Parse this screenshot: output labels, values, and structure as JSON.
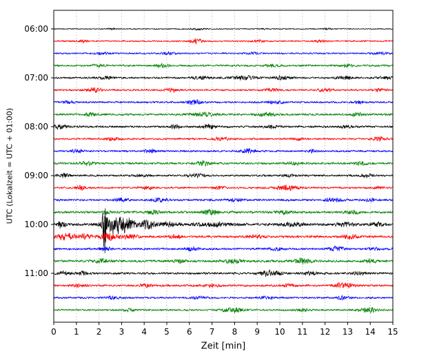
{
  "chart_data": {
    "type": "line",
    "subtype": "seismogram-dayplot",
    "title": "",
    "xlabel": "Zeit  [min]",
    "ylabel": "UTC (Lokalzeit = UTC + 01:00)",
    "xlim": [
      0,
      15
    ],
    "x_ticks": [
      0,
      1,
      2,
      3,
      4,
      5,
      6,
      7,
      8,
      9,
      10,
      11,
      12,
      13,
      14,
      15
    ],
    "y_tick_labels": [
      "06:00",
      "07:00",
      "08:00",
      "09:00",
      "10:00",
      "11:00"
    ],
    "minutes_per_line": 15,
    "grid": {
      "vertical_dotted": true,
      "color": "#999999"
    },
    "color_cycle": [
      "#000000",
      "#ff0000",
      "#0000ff",
      "#008000"
    ],
    "main_event": {
      "trace": "10:00",
      "x_min": 2.25,
      "relative_amplitude": "large spike with coda"
    },
    "traces": [
      {
        "time": "06:00",
        "color": "#000000",
        "base_amp": 0.9,
        "bursts": [
          {
            "x": 2.6,
            "amp": 1.2,
            "w": 0.2
          },
          {
            "x": 6.4,
            "amp": 1.5,
            "w": 0.25
          },
          {
            "x": 9.3,
            "amp": 1.0,
            "w": 0.2
          },
          {
            "x": 12.1,
            "amp": 1.2,
            "w": 0.2
          }
        ]
      },
      {
        "time": "06:15",
        "color": "#ff0000",
        "base_amp": 1.4,
        "bursts": [
          {
            "x": 1.3,
            "amp": 2.0,
            "w": 0.2
          },
          {
            "x": 6.3,
            "amp": 3.5,
            "w": 0.3
          },
          {
            "x": 9.0,
            "amp": 1.5,
            "w": 0.3
          },
          {
            "x": 11.8,
            "amp": 2.0,
            "w": 0.25
          }
        ]
      },
      {
        "time": "06:30",
        "color": "#0000ff",
        "base_amp": 1.4,
        "bursts": [
          {
            "x": 2.2,
            "amp": 1.5,
            "w": 0.3
          },
          {
            "x": 5.1,
            "amp": 2.0,
            "w": 0.3
          },
          {
            "x": 8.8,
            "amp": 1.5,
            "w": 0.3
          },
          {
            "x": 14.4,
            "amp": 2.2,
            "w": 0.3
          }
        ]
      },
      {
        "time": "06:45",
        "color": "#008000",
        "base_amp": 1.6,
        "bursts": [
          {
            "x": 2.0,
            "amp": 1.8,
            "w": 0.3
          },
          {
            "x": 4.8,
            "amp": 2.8,
            "w": 0.25
          },
          {
            "x": 9.7,
            "amp": 1.8,
            "w": 0.3
          },
          {
            "x": 13.0,
            "amp": 1.8,
            "w": 0.3
          }
        ]
      },
      {
        "time": "07:00",
        "color": "#000000",
        "base_amp": 1.6,
        "bursts": [
          {
            "x": 2.3,
            "amp": 2.5,
            "w": 0.3
          },
          {
            "x": 6.5,
            "amp": 2.0,
            "w": 0.4
          },
          {
            "x": 8.4,
            "amp": 3.0,
            "w": 0.6
          },
          {
            "x": 10.1,
            "amp": 2.8,
            "w": 0.4
          },
          {
            "x": 12.9,
            "amp": 2.5,
            "w": 0.35
          },
          {
            "x": 14.7,
            "amp": 2.2,
            "w": 0.3
          }
        ]
      },
      {
        "time": "07:15",
        "color": "#ff0000",
        "base_amp": 1.6,
        "bursts": [
          {
            "x": 1.8,
            "amp": 4.0,
            "w": 0.3
          },
          {
            "x": 5.2,
            "amp": 2.2,
            "w": 0.3
          },
          {
            "x": 9.6,
            "amp": 2.0,
            "w": 0.35
          },
          {
            "x": 12.0,
            "amp": 2.2,
            "w": 0.3
          },
          {
            "x": 14.4,
            "amp": 2.0,
            "w": 0.3
          }
        ]
      },
      {
        "time": "07:30",
        "color": "#0000ff",
        "base_amp": 1.6,
        "bursts": [
          {
            "x": 0.6,
            "amp": 1.8,
            "w": 0.3
          },
          {
            "x": 6.2,
            "amp": 3.2,
            "w": 0.4
          },
          {
            "x": 9.8,
            "amp": 2.2,
            "w": 0.35
          },
          {
            "x": 13.5,
            "amp": 1.8,
            "w": 0.3
          }
        ]
      },
      {
        "time": "07:45",
        "color": "#008000",
        "base_amp": 1.8,
        "bursts": [
          {
            "x": 1.6,
            "amp": 2.2,
            "w": 0.3
          },
          {
            "x": 6.6,
            "amp": 2.6,
            "w": 0.5
          },
          {
            "x": 9.4,
            "amp": 2.6,
            "w": 0.4
          },
          {
            "x": 13.4,
            "amp": 2.2,
            "w": 0.3
          }
        ]
      },
      {
        "time": "08:00",
        "color": "#000000",
        "base_amp": 1.8,
        "bursts": [
          {
            "x": 0.3,
            "amp": 3.5,
            "w": 0.3
          },
          {
            "x": 5.4,
            "amp": 2.8,
            "w": 0.25
          },
          {
            "x": 6.9,
            "amp": 3.0,
            "w": 0.4
          },
          {
            "x": 9.6,
            "amp": 2.2,
            "w": 0.3
          },
          {
            "x": 12.9,
            "amp": 2.0,
            "w": 0.3
          }
        ]
      },
      {
        "time": "08:15",
        "color": "#ff0000",
        "base_amp": 1.6,
        "bursts": [
          {
            "x": 2.6,
            "amp": 1.8,
            "w": 0.3
          },
          {
            "x": 7.4,
            "amp": 2.2,
            "w": 0.35
          },
          {
            "x": 10.8,
            "amp": 1.8,
            "w": 0.3
          },
          {
            "x": 14.4,
            "amp": 2.6,
            "w": 0.3
          }
        ]
      },
      {
        "time": "08:30",
        "color": "#0000ff",
        "base_amp": 1.6,
        "bursts": [
          {
            "x": 1.0,
            "amp": 1.8,
            "w": 0.3
          },
          {
            "x": 4.3,
            "amp": 2.2,
            "w": 0.3
          },
          {
            "x": 8.6,
            "amp": 3.0,
            "w": 0.35
          },
          {
            "x": 11.5,
            "amp": 1.8,
            "w": 0.3
          }
        ]
      },
      {
        "time": "08:45",
        "color": "#008000",
        "base_amp": 1.8,
        "bursts": [
          {
            "x": 1.5,
            "amp": 2.6,
            "w": 0.3
          },
          {
            "x": 6.6,
            "amp": 3.0,
            "w": 0.35
          },
          {
            "x": 10.6,
            "amp": 2.2,
            "w": 0.3
          },
          {
            "x": 13.6,
            "amp": 1.8,
            "w": 0.3
          }
        ]
      },
      {
        "time": "09:00",
        "color": "#000000",
        "base_amp": 1.6,
        "bursts": [
          {
            "x": 0.5,
            "amp": 2.6,
            "w": 0.3
          },
          {
            "x": 3.9,
            "amp": 1.8,
            "w": 0.3
          },
          {
            "x": 6.3,
            "amp": 2.6,
            "w": 0.4
          },
          {
            "x": 10.4,
            "amp": 1.8,
            "w": 0.3
          },
          {
            "x": 13.8,
            "amp": 2.2,
            "w": 0.3
          }
        ]
      },
      {
        "time": "09:15",
        "color": "#ff0000",
        "base_amp": 1.6,
        "bursts": [
          {
            "x": 1.2,
            "amp": 3.5,
            "w": 0.25
          },
          {
            "x": 4.1,
            "amp": 2.2,
            "w": 0.3
          },
          {
            "x": 7.3,
            "amp": 1.8,
            "w": 0.3
          },
          {
            "x": 10.3,
            "amp": 3.5,
            "w": 0.5
          },
          {
            "x": 14.4,
            "amp": 2.0,
            "w": 0.3
          }
        ]
      },
      {
        "time": "09:30",
        "color": "#0000ff",
        "base_amp": 1.8,
        "bursts": [
          {
            "x": 3.0,
            "amp": 2.6,
            "w": 0.3
          },
          {
            "x": 4.7,
            "amp": 3.0,
            "w": 0.3
          },
          {
            "x": 8.0,
            "amp": 2.2,
            "w": 0.35
          },
          {
            "x": 12.4,
            "amp": 2.8,
            "w": 0.4
          },
          {
            "x": 14.1,
            "amp": 2.2,
            "w": 0.3
          }
        ]
      },
      {
        "time": "09:45",
        "color": "#008000",
        "base_amp": 2.0,
        "bursts": [
          {
            "x": 2.3,
            "amp": 3.5,
            "w": 0.15
          },
          {
            "x": 4.4,
            "amp": 2.2,
            "w": 0.3
          },
          {
            "x": 6.9,
            "amp": 3.2,
            "w": 0.4
          },
          {
            "x": 10.2,
            "amp": 2.6,
            "w": 0.35
          },
          {
            "x": 13.2,
            "amp": 2.2,
            "w": 0.3
          }
        ]
      },
      {
        "time": "10:00",
        "color": "#000000",
        "base_amp": 2.2,
        "bursts": [
          {
            "x": 0.35,
            "amp": 4.5,
            "w": 0.2
          },
          {
            "x": 2.25,
            "amp": 52,
            "w": 0.07
          },
          {
            "x": 2.6,
            "amp": 13,
            "w": 0.45
          },
          {
            "x": 3.2,
            "amp": 9,
            "w": 0.4
          },
          {
            "x": 4.1,
            "amp": 6.5,
            "w": 0.35
          },
          {
            "x": 5.0,
            "amp": 3.5,
            "w": 0.4
          },
          {
            "x": 7.0,
            "amp": 2.6,
            "w": 0.8
          },
          {
            "x": 10.6,
            "amp": 3.0,
            "w": 0.5
          },
          {
            "x": 12.9,
            "amp": 2.6,
            "w": 0.4
          },
          {
            "x": 14.3,
            "amp": 2.6,
            "w": 0.3
          }
        ]
      },
      {
        "time": "10:15",
        "color": "#ff0000",
        "base_amp": 2.0,
        "bursts": [
          {
            "x": 0.5,
            "amp": 4.5,
            "w": 0.4
          },
          {
            "x": 1.4,
            "amp": 3.5,
            "w": 0.3
          },
          {
            "x": 2.4,
            "amp": 5.5,
            "w": 0.35
          },
          {
            "x": 3.3,
            "amp": 3.5,
            "w": 0.4
          },
          {
            "x": 5.4,
            "amp": 2.2,
            "w": 0.3
          },
          {
            "x": 9.0,
            "amp": 2.2,
            "w": 0.35
          },
          {
            "x": 13.1,
            "amp": 3.2,
            "w": 0.3
          }
        ]
      },
      {
        "time": "10:30",
        "color": "#0000ff",
        "base_amp": 1.8,
        "bursts": [
          {
            "x": 2.3,
            "amp": 2.6,
            "w": 0.3
          },
          {
            "x": 6.1,
            "amp": 2.2,
            "w": 0.3
          },
          {
            "x": 9.9,
            "amp": 2.2,
            "w": 0.3
          },
          {
            "x": 12.5,
            "amp": 2.8,
            "w": 0.35
          },
          {
            "x": 14.2,
            "amp": 2.2,
            "w": 0.3
          }
        ]
      },
      {
        "time": "10:45",
        "color": "#008000",
        "base_amp": 2.0,
        "bursts": [
          {
            "x": 2.1,
            "amp": 2.6,
            "w": 0.3
          },
          {
            "x": 5.6,
            "amp": 2.6,
            "w": 0.3
          },
          {
            "x": 8.0,
            "amp": 3.0,
            "w": 0.4
          },
          {
            "x": 11.0,
            "amp": 3.5,
            "w": 0.4
          },
          {
            "x": 14.0,
            "amp": 2.2,
            "w": 0.3
          }
        ]
      },
      {
        "time": "11:00",
        "color": "#000000",
        "base_amp": 1.8,
        "bursts": [
          {
            "x": 0.4,
            "amp": 2.6,
            "w": 0.3
          },
          {
            "x": 1.3,
            "amp": 2.2,
            "w": 0.25
          },
          {
            "x": 9.6,
            "amp": 4.0,
            "w": 0.5
          },
          {
            "x": 11.4,
            "amp": 2.6,
            "w": 0.3
          },
          {
            "x": 13.5,
            "amp": 1.8,
            "w": 0.3
          }
        ]
      },
      {
        "time": "11:15",
        "color": "#ff0000",
        "base_amp": 1.8,
        "bursts": [
          {
            "x": 1.1,
            "amp": 2.0,
            "w": 0.3
          },
          {
            "x": 4.1,
            "amp": 2.2,
            "w": 0.3
          },
          {
            "x": 7.0,
            "amp": 2.2,
            "w": 0.3
          },
          {
            "x": 10.4,
            "amp": 2.0,
            "w": 0.3
          },
          {
            "x": 12.8,
            "amp": 4.0,
            "w": 0.4
          }
        ]
      },
      {
        "time": "11:30",
        "color": "#0000ff",
        "base_amp": 1.6,
        "bursts": [
          {
            "x": 2.6,
            "amp": 1.8,
            "w": 0.3
          },
          {
            "x": 6.4,
            "amp": 1.8,
            "w": 0.3
          },
          {
            "x": 9.4,
            "amp": 1.8,
            "w": 0.3
          },
          {
            "x": 12.8,
            "amp": 2.6,
            "w": 0.3
          }
        ]
      },
      {
        "time": "11:45",
        "color": "#008000",
        "base_amp": 1.6,
        "bursts": [
          {
            "x": 3.4,
            "amp": 1.8,
            "w": 0.3
          },
          {
            "x": 7.9,
            "amp": 3.0,
            "w": 0.5
          },
          {
            "x": 11.0,
            "amp": 1.8,
            "w": 0.3
          },
          {
            "x": 13.9,
            "amp": 4.0,
            "w": 0.4
          }
        ]
      }
    ]
  }
}
